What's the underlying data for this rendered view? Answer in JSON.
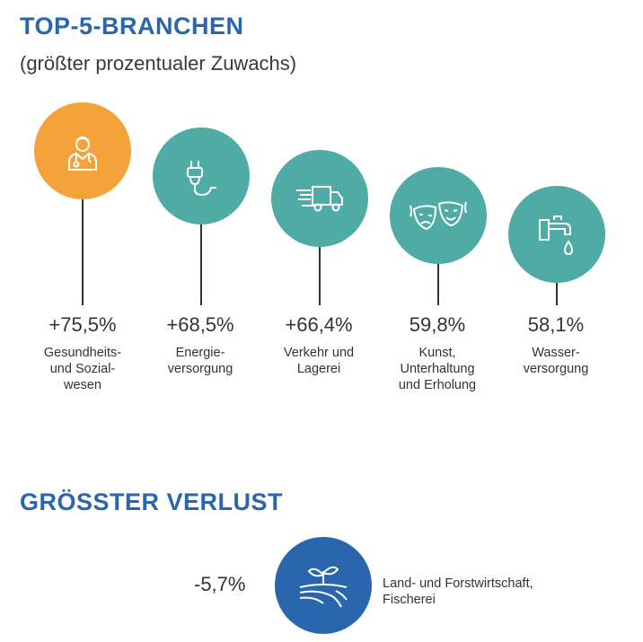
{
  "heading": "TOP-5-BRANCHEN",
  "subheading": "(größter prozentualer Zuwachs)",
  "branches": [
    {
      "value": "+75,5%",
      "label": "Gesundheits-\nund Sozial-\nwesen",
      "icon": "doctor-icon",
      "color": "#f3a33a"
    },
    {
      "value": "+68,5%",
      "label": "Energie-\nversorgung",
      "icon": "plug-icon",
      "color": "#4faba5"
    },
    {
      "value": "+66,4%",
      "label": "Verkehr und\nLagerei",
      "icon": "truck-icon",
      "color": "#4faba5"
    },
    {
      "value": "59,8%",
      "label": "Kunst,\nUnterhaltung\nund Erholung",
      "icon": "theater-masks-icon",
      "color": "#4faba5"
    },
    {
      "value": "58,1%",
      "label": "Wasser-\nversorgung",
      "icon": "faucet-icon",
      "color": "#4faba5"
    }
  ],
  "loss_heading": "GRÖSSTER VERLUST",
  "loss": {
    "value": "-5,7%",
    "label": "Land- und Forstwirtschaft,\nFischerei",
    "icon": "sprout-field-icon",
    "color": "#2a66ae"
  }
}
